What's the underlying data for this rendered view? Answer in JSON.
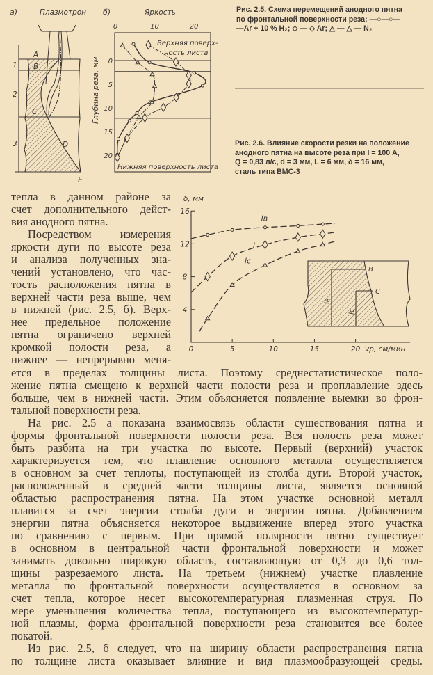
{
  "figure_2_5": {
    "caption": [
      "Рис. 2.5. Схема перемещений анодного пятна",
      "по фронтальной поверхности реза: —○—○—",
      "—Ar + 10 % H₂; ◇ — ◇ Ar;   △ — △ — N₂"
    ],
    "panel_a": {
      "label": "а)",
      "torch_label": "Плазмотрон",
      "points": [
        "A",
        "B",
        "C",
        "D",
        "E"
      ],
      "zones": [
        "1",
        "2",
        "3"
      ]
    },
    "panel_b_label": "б)",
    "top_surface_label": [
      "Верхняя поверх-",
      "ность листа"
    ],
    "bottom_surface_label": "Нижняя поверхность листа"
  },
  "figure_2_6": {
    "caption": [
      "Рис. 2.6. Влияние скорости резки на положение",
      "анодного пятна на высоте реза при I = 100 А,",
      "Q = 0,83 л/с, d = 3 мм, L = 6 мм, δ = 16 мм,",
      "сталь типа ВМС-3"
    ],
    "inset_labels": {
      "B": "B",
      "C": "C",
      "lB": "lв",
      "lC": "lc"
    }
  },
  "chart_data": [
    {
      "type": "line",
      "title": "б)",
      "xlabel": "Яркость",
      "ylabel": "Глубина реза, мм",
      "xlim": [
        0,
        22
      ],
      "ylim": [
        23,
        -5
      ],
      "x_ticks": [
        "0",
        "10",
        "20"
      ],
      "y_ticks": [
        "0",
        "5",
        "10",
        "15",
        "20"
      ],
      "reference_depths": [
        0,
        2.3,
        12.2
      ],
      "series": [
        {
          "marker": "circle",
          "line": "solid",
          "points": [
            [
              4.6,
              -3.5
            ],
            [
              8.7,
              0.4
            ],
            [
              20.1,
              2.6
            ],
            [
              22.2,
              5.3
            ],
            [
              8.9,
              8.8
            ],
            [
              5.5,
              11.1
            ],
            [
              3.6,
              12.7
            ],
            [
              0.8,
              16.6
            ],
            [
              0.5,
              19.9
            ]
          ]
        },
        {
          "marker": "triangle",
          "line": "dash-dot",
          "points": [
            [
              1.8,
              -3.2
            ],
            [
              5.7,
              0.4
            ],
            [
              9.4,
              2.9
            ],
            [
              10,
              5.4
            ],
            [
              9.3,
              8.8
            ],
            [
              6,
              12
            ],
            [
              2.8,
              16.5
            ],
            [
              0.5,
              20.5
            ]
          ]
        },
        {
          "marker": "diamond",
          "line": "dash-dot",
          "points": [
            [
              8.4,
              -3.3
            ],
            [
              15.4,
              0.3
            ],
            [
              18.7,
              3.1
            ],
            [
              18.7,
              4.9
            ],
            [
              15.5,
              7.8
            ],
            [
              12.2,
              9.9
            ],
            [
              7.5,
              12.1
            ],
            [
              3,
              16.4
            ],
            [
              0.5,
              20.5
            ]
          ]
        }
      ]
    },
    {
      "type": "line",
      "xlabel": "vр, см/мин",
      "ylabel": "δ, мм",
      "xlim": [
        0,
        24
      ],
      "ylim": [
        0,
        16
      ],
      "x_ticks": [
        "0",
        "5",
        "10",
        "15",
        "20"
      ],
      "y_ticks": [
        "4",
        "8",
        "12",
        "16"
      ],
      "series": [
        {
          "name": "lв",
          "marker": "circle",
          "x": [
            2,
            5,
            9,
            13,
            16
          ],
          "y": [
            13.1,
            13.7,
            14.0,
            14.2,
            14.4
          ]
        },
        {
          "name": "l",
          "marker": "diamond",
          "x": [
            2,
            5,
            9,
            13,
            16
          ],
          "y": [
            8.0,
            10.5,
            11.9,
            12.8,
            13.2
          ]
        },
        {
          "name": "lc",
          "marker": "triangle",
          "x": [
            2,
            5,
            9,
            13,
            16
          ],
          "y": [
            2.9,
            7.0,
            9.4,
            11.1,
            11.9
          ]
        }
      ]
    }
  ],
  "body": {
    "side_column": [
      {
        "indent": false,
        "lines": [
          "тепла в данном районе за",
          "счет дополнительного дейст-",
          "вия анодного пятна."
        ]
      },
      {
        "indent": true,
        "lines": [
          "Посредством измерения",
          "яркости дуги по высоте реза",
          "и анализа полученных зна-",
          "чений установлено, что час-",
          "тость расположения пятна в",
          "верхней части реза выше, чем",
          "в нижней (рис. 2.5, б). Верх-",
          "нее предельное положение",
          "пятна ограничено верхней",
          "кромкой полости реза, а",
          "нижнее — непрерывно меня-"
        ],
        "continues": true
      }
    ],
    "full_width": [
      {
        "indent": false,
        "lines": [
          "ется в пределах толщины листа. Поэтому среднестатистическое поло-",
          "жение пятна смещено к верхней части полости реза и проплавление здесь",
          "больше, чем в нижней части. Этим объясняется появление выемки во фрон-",
          "тальной поверхности реза."
        ]
      },
      {
        "indent": true,
        "lines": [
          "На рис. 2.5 а показана взаимосвязь области существования пятна и",
          "формы фронтальной поверхности полости реза. Вся полость реза может",
          "быть разбита на три участка по высоте. Первый (верхний) участок",
          "характеризуется тем, что плавление основного металла осуществляется",
          "в основном за счет теплоты, поступающей из столба дуги. Второй участок,",
          "расположенный в средней части толщины листа, является основной",
          "областью распространения пятна. На этом участке основной металл",
          "плавится за счет энергии столба дуги и энергии пятна. Добавлением",
          "энергии пятна объясняется некоторое выдвижение вперед этого участка",
          "по сравнению с первым. При прямой полярности пятно существует",
          "в основном в центральной части фронтальной поверхности и может",
          "занимать довольно широкую область, составляющую от 0,3 до 0,6 тол-",
          "щины разрезаемого листа. На третьем (нижнем) участке плавление",
          "металла по фронтальной поверхности осуществляется в основном за",
          "счет тепла, которое несет высокотемпературная плазменная струя. По",
          "мере уменьшения количества тепла, поступающего из высокотемператур-",
          "ной плазмы, форма фронтальной поверхности реза становится все более",
          "покатой."
        ]
      },
      {
        "indent": true,
        "lines": [
          "Из рис. 2.5, б следует, что на ширину области распространения пятна",
          "по толщине листа оказывает влияние и вид плазмообразующей среды."
        ],
        "continues": true
      }
    ]
  },
  "colors": {
    "paper": "#f3e3c3",
    "ink": "#3d3630"
  }
}
